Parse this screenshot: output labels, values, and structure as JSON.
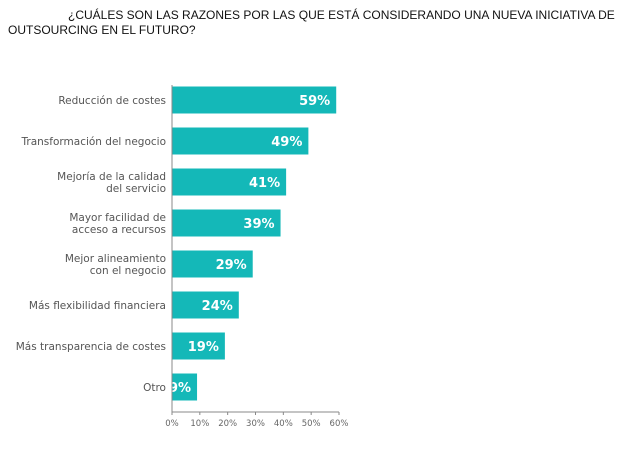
{
  "chart_data": {
    "type": "bar",
    "orientation": "horizontal",
    "title": "¿CUÁLES SON LAS RAZONES POR LAS QUE ESTÁ CONSIDERANDO UNA NUEVA INICIATIVA DE OUTSOURCING EN EL FUTURO?",
    "categories": [
      [
        "Reducción de costes"
      ],
      [
        "Transformación del negocio"
      ],
      [
        "Mejoría de la calidad",
        "del servicio"
      ],
      [
        "Mayor facilidad de",
        "acceso a recursos"
      ],
      [
        "Mejor alineamiento",
        "con el negocio"
      ],
      [
        "Más flexibilidad financiera"
      ],
      [
        "Más transparencia de costes"
      ],
      [
        "Otro"
      ]
    ],
    "values": [
      59,
      49,
      41,
      39,
      29,
      24,
      19,
      9
    ],
    "value_labels": [
      "59%",
      "49%",
      "41%",
      "39%",
      "29%",
      "24%",
      "19%",
      "9%"
    ],
    "xticks": [
      "0%",
      "10%",
      "20%",
      "30%",
      "40%",
      "50%",
      "60%"
    ],
    "xlim": [
      0,
      60
    ],
    "bar_color": "#14B8B8",
    "grid": false
  }
}
